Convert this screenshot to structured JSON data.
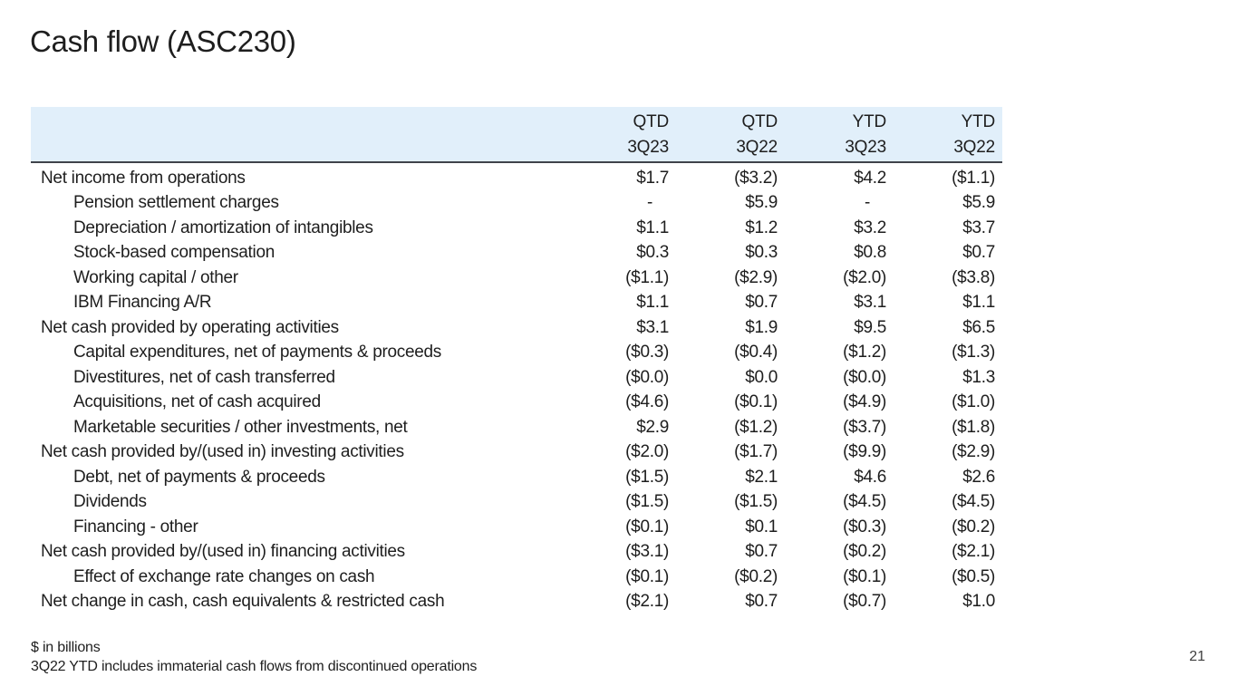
{
  "colors": {
    "header_band": "#e1effa",
    "header_rule": "#3f434a",
    "text": "#1e1e1e",
    "page_number": "#3f3f3f"
  },
  "slide": {
    "title": "Cash flow (ASC230)",
    "page_number": "21",
    "footnote_units": "$ in billions",
    "footnote_note": "3Q22 YTD includes immaterial cash flows from discontinued operations"
  },
  "table": {
    "columns": [
      {
        "period": "QTD",
        "quarter": "3Q23"
      },
      {
        "period": "QTD",
        "quarter": "3Q22"
      },
      {
        "period": "YTD",
        "quarter": "3Q23"
      },
      {
        "period": "YTD",
        "quarter": "3Q22"
      }
    ],
    "rows": [
      {
        "label": "Net income from operations",
        "indent": 0,
        "values": [
          "$1.7",
          "($3.2)",
          "$4.2",
          "($1.1)"
        ]
      },
      {
        "label": "Pension settlement charges",
        "indent": 1,
        "values": [
          "-",
          "$5.9",
          "-",
          "$5.9"
        ]
      },
      {
        "label": "Depreciation / amortization of intangibles",
        "indent": 1,
        "values": [
          "$1.1",
          "$1.2",
          "$3.2",
          "$3.7"
        ]
      },
      {
        "label": "Stock-based compensation",
        "indent": 1,
        "values": [
          "$0.3",
          "$0.3",
          "$0.8",
          "$0.7"
        ]
      },
      {
        "label": "Working capital / other",
        "indent": 1,
        "values": [
          "($1.1)",
          "($2.9)",
          "($2.0)",
          "($3.8)"
        ]
      },
      {
        "label": "IBM Financing  A/R",
        "indent": 1,
        "values": [
          "$1.1",
          "$0.7",
          "$3.1",
          "$1.1"
        ]
      },
      {
        "label": "Net cash provided by operating activities",
        "indent": 0,
        "values": [
          "$3.1",
          "$1.9",
          "$9.5",
          "$6.5"
        ]
      },
      {
        "label": "Capital expenditures, net of payments & proceeds",
        "indent": 1,
        "values": [
          "($0.3)",
          "($0.4)",
          "($1.2)",
          "($1.3)"
        ]
      },
      {
        "label": "Divestitures, net of cash transferred",
        "indent": 1,
        "values": [
          "($0.0)",
          "$0.0",
          "($0.0)",
          "$1.3"
        ]
      },
      {
        "label": "Acquisitions, net of cash acquired",
        "indent": 1,
        "values": [
          "($4.6)",
          "($0.1)",
          "($4.9)",
          "($1.0)"
        ]
      },
      {
        "label": "Marketable securities / other investments, net",
        "indent": 1,
        "values": [
          "$2.9",
          "($1.2)",
          "($3.7)",
          "($1.8)"
        ]
      },
      {
        "label": "Net cash provided by/(used in) investing activities",
        "indent": 0,
        "values": [
          "($2.0)",
          "($1.7)",
          "($9.9)",
          "($2.9)"
        ]
      },
      {
        "label": "Debt, net of payments & proceeds",
        "indent": 1,
        "values": [
          "($1.5)",
          "$2.1",
          "$4.6",
          "$2.6"
        ]
      },
      {
        "label": "Dividends",
        "indent": 1,
        "values": [
          "($1.5)",
          "($1.5)",
          "($4.5)",
          "($4.5)"
        ]
      },
      {
        "label": "Financing - other",
        "indent": 1,
        "values": [
          "($0.1)",
          "$0.1",
          "($0.3)",
          "($0.2)"
        ]
      },
      {
        "label": "Net cash provided by/(used in) financing activities",
        "indent": 0,
        "values": [
          "($3.1)",
          "$0.7",
          "($0.2)",
          "($2.1)"
        ]
      },
      {
        "label": "Effect of exchange rate changes on cash",
        "indent": 1,
        "values": [
          "($0.1)",
          "($0.2)",
          "($0.1)",
          "($0.5)"
        ]
      },
      {
        "label": "Net change in cash, cash equivalents & restricted cash",
        "indent": 0,
        "values": [
          "($2.1)",
          "$0.7",
          "($0.7)",
          "$1.0"
        ]
      }
    ]
  }
}
